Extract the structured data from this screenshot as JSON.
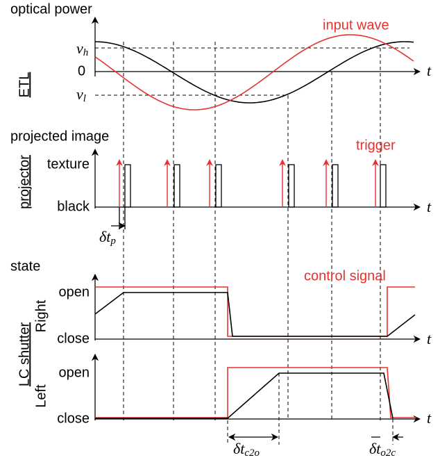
{
  "etl": {
    "axis_label": "ETL",
    "y_title": "optical power",
    "wave_label": "input wave",
    "levels": [
      {
        "base": "v",
        "sub": "h"
      },
      {
        "base": "0"
      },
      {
        "base": "v",
        "sub": "l"
      }
    ],
    "time": "t"
  },
  "projector": {
    "axis_label": "projector",
    "y_title": "projected image",
    "trigger_label": "trigger",
    "levels": [
      "texture",
      "black"
    ],
    "time": "t",
    "delay": {
      "base": "δt",
      "sub": "p"
    }
  },
  "shutter": {
    "axis_label": "LC shutter",
    "y_title": "state",
    "signal_label": "control signal",
    "right": {
      "label": "Right",
      "levels": [
        "open",
        "close"
      ],
      "time": "t"
    },
    "left": {
      "label": "Left",
      "levels": [
        "open",
        "close"
      ],
      "time": "t"
    },
    "delays": [
      {
        "base": "δt",
        "sub": "c2o"
      },
      {
        "base": "δt",
        "sub": "o2c"
      }
    ]
  }
}
